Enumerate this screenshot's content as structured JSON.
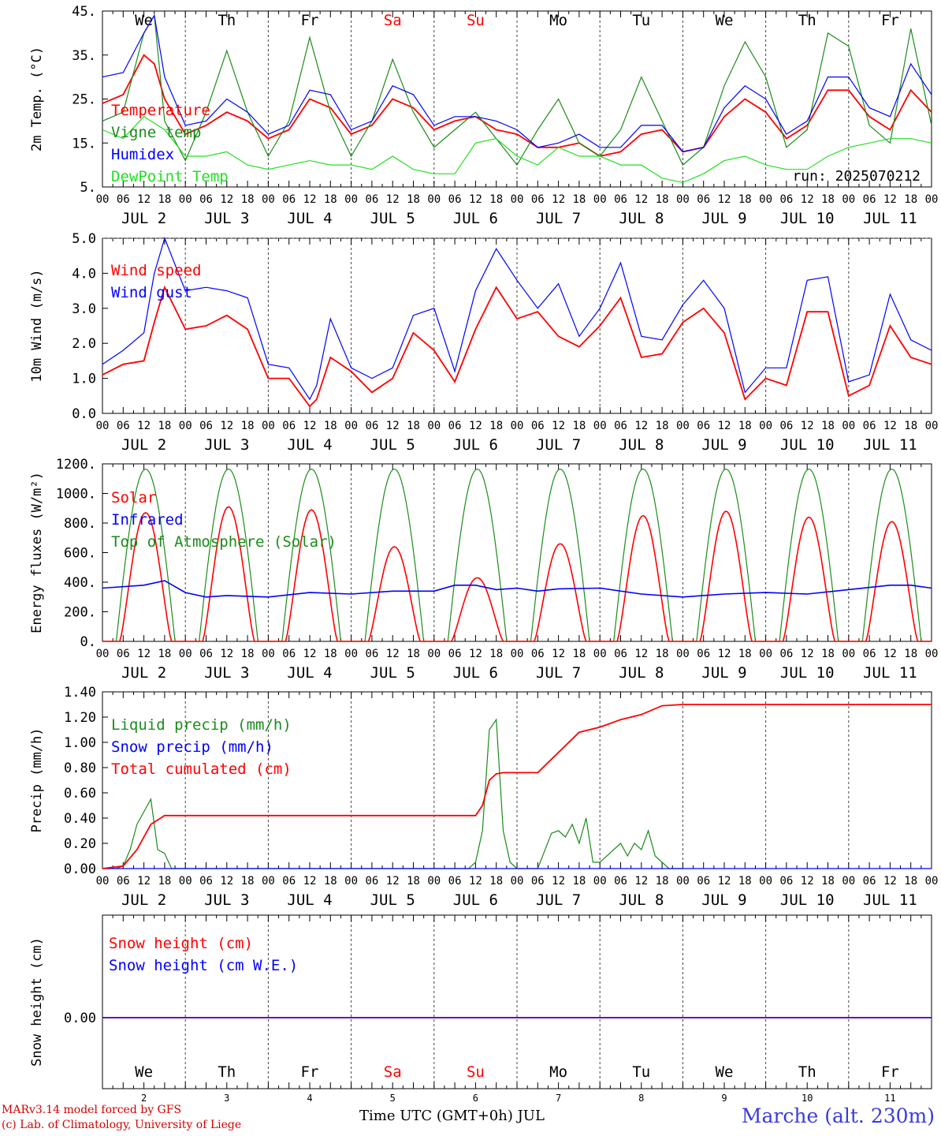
{
  "colors": {
    "temperature": "#ff0000",
    "vigne": "#1a8c1a",
    "humidex": "#0000ff",
    "dewpoint": "#22e022",
    "weekend_day": "#ff0000",
    "weekday": "#000000"
  },
  "days": [
    "We",
    "Th",
    "Fr",
    "Sa",
    "Su",
    "Mo",
    "Tu",
    "We",
    "Th",
    "Fr"
  ],
  "weekend_days": [
    3,
    4
  ],
  "date_labels": [
    "JUL  2",
    "JUL  3",
    "JUL  4",
    "JUL  5",
    "JUL  6",
    "JUL  7",
    "JUL  8",
    "JUL  9",
    "JUL 10",
    "JUL 11"
  ],
  "hour_ticks": [
    "00",
    "06",
    "12",
    "18"
  ],
  "bottom_day_numbers": [
    "2",
    "3",
    "4",
    "5",
    "6",
    "7",
    "8",
    "9",
    "10",
    "11"
  ],
  "run_label": "run: 2025070212",
  "footer": {
    "model_line": "MARv3.14 model forced by GFS",
    "copyright_line": "(c) Lab. of Climatology, University of Liege",
    "xlabel": "Time UTC (GMT+0h) JUL",
    "location": "Marche (alt. 230m)"
  },
  "chart_data": [
    {
      "type": "line",
      "ylabel": "2m Temp. (°C)",
      "ylim": [
        5,
        45
      ],
      "yticks": [
        "45.",
        "35.",
        "25.",
        "15.",
        "5."
      ],
      "ytick_values": [
        45,
        35,
        25,
        15,
        5
      ],
      "x_unit": "hours since JUL 2 00 UTC",
      "legend": [
        "Temperature",
        "Vigne temp",
        "Humidex",
        "DewPoint Temp"
      ],
      "series": [
        {
          "name": "Temperature",
          "color": "temperature",
          "x": [
            0,
            6,
            12,
            15,
            18,
            24,
            30,
            36,
            42,
            48,
            54,
            60,
            66,
            72,
            78,
            84,
            90,
            96,
            102,
            108,
            114,
            120,
            126,
            132,
            138,
            144,
            150,
            156,
            162,
            168,
            174,
            180,
            186,
            192,
            198,
            204,
            210,
            216,
            222,
            228,
            234,
            240
          ],
          "y": [
            24,
            26,
            35,
            33,
            25,
            17,
            19,
            22,
            20,
            16,
            18,
            25,
            23,
            17,
            19,
            25,
            23,
            18,
            20,
            21,
            18,
            17,
            14,
            14,
            15,
            12,
            13,
            17,
            18,
            13,
            14,
            21,
            25,
            22,
            16,
            19,
            27,
            27,
            21,
            18,
            27,
            22
          ]
        },
        {
          "name": "Vigne temp",
          "color": "vigne",
          "x": [
            0,
            6,
            12,
            15,
            18,
            24,
            30,
            36,
            42,
            48,
            54,
            60,
            66,
            72,
            78,
            84,
            90,
            96,
            102,
            108,
            114,
            120,
            126,
            132,
            138,
            144,
            150,
            156,
            162,
            168,
            174,
            180,
            186,
            192,
            198,
            204,
            210,
            216,
            222,
            228,
            234,
            240
          ],
          "y": [
            20,
            22,
            40,
            44,
            20,
            11,
            22,
            36,
            22,
            12,
            20,
            39,
            22,
            12,
            20,
            34,
            22,
            14,
            18,
            22,
            16,
            10,
            18,
            25,
            15,
            12,
            18,
            30,
            20,
            10,
            14,
            28,
            38,
            30,
            14,
            18,
            40,
            37,
            19,
            15,
            41,
            19
          ]
        },
        {
          "name": "Humidex",
          "color": "humidex",
          "x": [
            0,
            6,
            12,
            15,
            18,
            24,
            30,
            36,
            42,
            48,
            54,
            60,
            66,
            72,
            78,
            84,
            90,
            96,
            102,
            108,
            114,
            120,
            126,
            132,
            138,
            144,
            150,
            156,
            162,
            168,
            174,
            180,
            186,
            192,
            198,
            204,
            210,
            216,
            222,
            228,
            234,
            240
          ],
          "y": [
            30,
            31,
            40,
            44,
            30,
            19,
            20,
            25,
            22,
            17,
            19,
            27,
            26,
            18,
            20,
            28,
            26,
            19,
            21,
            21,
            20,
            18,
            14,
            15,
            17,
            14,
            14,
            19,
            19,
            13,
            14,
            23,
            28,
            25,
            17,
            20,
            30,
            30,
            23,
            21,
            33,
            26
          ]
        },
        {
          "name": "DewPoint Temp",
          "color": "dewpoint",
          "x": [
            0,
            6,
            12,
            18,
            24,
            30,
            36,
            42,
            48,
            54,
            60,
            66,
            72,
            78,
            84,
            90,
            96,
            102,
            108,
            114,
            120,
            126,
            132,
            138,
            144,
            150,
            156,
            162,
            168,
            174,
            180,
            186,
            192,
            198,
            204,
            210,
            216,
            222,
            228,
            234,
            240
          ],
          "y": [
            18,
            16,
            21,
            18,
            12,
            12,
            13,
            10,
            9,
            10,
            11,
            10,
            10,
            9,
            12,
            9,
            8,
            8,
            15,
            16,
            12,
            10,
            14,
            12,
            12,
            10,
            10,
            7,
            6,
            8,
            11,
            12,
            10,
            9,
            9,
            12,
            14,
            15,
            16,
            16,
            15
          ]
        }
      ]
    },
    {
      "type": "line",
      "ylabel": "10m Wind (m/s)",
      "ylim": [
        0,
        5
      ],
      "yticks": [
        "5.0",
        "4.0",
        "3.0",
        "2.0",
        "1.0",
        "0.0"
      ],
      "ytick_values": [
        5,
        4,
        3,
        2,
        1,
        0
      ],
      "legend": [
        "Wind speed",
        "Wind gust"
      ],
      "series": [
        {
          "name": "Wind speed",
          "color": "temperature",
          "x": [
            0,
            6,
            12,
            15,
            18,
            24,
            30,
            36,
            42,
            48,
            54,
            60,
            62,
            66,
            72,
            78,
            84,
            90,
            96,
            102,
            108,
            114,
            120,
            126,
            132,
            138,
            144,
            150,
            156,
            162,
            168,
            174,
            180,
            186,
            192,
            198,
            204,
            210,
            216,
            222,
            228,
            234,
            240
          ],
          "y": [
            1.1,
            1.4,
            1.5,
            2.6,
            3.6,
            2.4,
            2.5,
            2.8,
            2.4,
            1.0,
            1.0,
            0.2,
            0.4,
            1.6,
            1.2,
            0.6,
            1.0,
            2.3,
            1.8,
            0.9,
            2.4,
            3.6,
            2.7,
            2.9,
            2.2,
            1.9,
            2.5,
            3.3,
            1.6,
            1.7,
            2.6,
            3.0,
            2.3,
            0.4,
            1.0,
            0.8,
            2.9,
            2.9,
            0.5,
            0.8,
            2.5,
            1.6,
            1.4
          ]
        },
        {
          "name": "Wind gust",
          "color": "humidex",
          "x": [
            0,
            6,
            12,
            15,
            18,
            24,
            30,
            36,
            42,
            48,
            54,
            60,
            62,
            66,
            72,
            78,
            84,
            90,
            96,
            102,
            108,
            114,
            120,
            126,
            132,
            138,
            144,
            150,
            156,
            162,
            168,
            174,
            180,
            186,
            192,
            198,
            204,
            210,
            216,
            222,
            228,
            234,
            240
          ],
          "y": [
            1.4,
            1.8,
            2.3,
            4.0,
            5.0,
            3.5,
            3.6,
            3.5,
            3.3,
            1.4,
            1.3,
            0.4,
            0.8,
            2.7,
            1.3,
            1.0,
            1.3,
            2.8,
            3.0,
            1.2,
            3.5,
            4.7,
            3.8,
            3.0,
            3.7,
            2.2,
            3.0,
            4.3,
            2.2,
            2.1,
            3.1,
            3.8,
            3.0,
            0.6,
            1.3,
            1.3,
            3.8,
            3.9,
            0.9,
            1.1,
            3.4,
            2.1,
            1.8
          ]
        }
      ]
    },
    {
      "type": "line",
      "ylabel": "Energy fluxes (W/m²)",
      "ylim": [
        0,
        1200
      ],
      "yticks": [
        "1200.",
        "1000.",
        "800.",
        "600.",
        "400.",
        "200.",
        "0."
      ],
      "ytick_values": [
        1200,
        1000,
        800,
        600,
        400,
        200,
        0
      ],
      "legend": [
        "Solar",
        "Infrared",
        "Top of Atmosphere (Solar)"
      ],
      "series": [
        {
          "name": "Solar",
          "color": "temperature",
          "toa_peak": 1165,
          "daily_peak": [
            870,
            910,
            890,
            640,
            430,
            660,
            850,
            880,
            840,
            810
          ]
        },
        {
          "name": "Infrared",
          "color": "humidex",
          "x": [
            0,
            12,
            18,
            24,
            30,
            36,
            48,
            60,
            72,
            84,
            96,
            102,
            108,
            114,
            120,
            126,
            132,
            144,
            156,
            168,
            180,
            192,
            204,
            216,
            228,
            234,
            240
          ],
          "y": [
            360,
            380,
            410,
            330,
            300,
            310,
            300,
            330,
            320,
            340,
            340,
            380,
            380,
            350,
            360,
            340,
            355,
            360,
            320,
            300,
            320,
            330,
            320,
            350,
            380,
            380,
            360
          ]
        },
        {
          "name": "Top of Atmosphere (Solar)",
          "color": "vigne"
        }
      ]
    },
    {
      "type": "line",
      "ylabel": "Precip (mm/h)",
      "ylim": [
        0,
        1.4
      ],
      "yticks": [
        "1.40",
        "1.20",
        "1.00",
        "0.80",
        "0.60",
        "0.40",
        "0.20",
        "0.00"
      ],
      "ytick_values": [
        1.4,
        1.2,
        1.0,
        0.8,
        0.6,
        0.4,
        0.2,
        0.0
      ],
      "legend": [
        "Liquid precip (mm/h)",
        "Snow precip (mm/h)",
        "Total cumulated (cm)"
      ],
      "series": [
        {
          "name": "Liquid precip (mm/h)",
          "color": "vigne",
          "x": [
            0,
            4,
            6,
            8,
            10,
            12,
            14,
            16,
            18,
            20,
            22,
            24,
            106,
            108,
            110,
            112,
            114,
            116,
            118,
            120,
            126,
            130,
            132,
            134,
            136,
            138,
            140,
            142,
            144,
            150,
            152,
            154,
            156,
            158,
            160,
            162,
            164,
            168
          ],
          "y": [
            0,
            0,
            0.02,
            0.15,
            0.35,
            0.45,
            0.55,
            0.15,
            0.12,
            0,
            0,
            0,
            0,
            0.05,
            0.3,
            1.1,
            1.18,
            0.3,
            0.05,
            0,
            0,
            0.28,
            0.3,
            0.25,
            0.35,
            0.2,
            0.4,
            0.05,
            0.05,
            0.2,
            0.1,
            0.2,
            0.15,
            0.3,
            0.1,
            0.05,
            0,
            0
          ]
        },
        {
          "name": "Snow precip (mm/h)",
          "color": "humidex",
          "x": [
            0,
            240
          ],
          "y": [
            0,
            0
          ]
        },
        {
          "name": "Total cumulated (cm)",
          "color": "temperature",
          "x": [
            0,
            6,
            10,
            14,
            18,
            108,
            110,
            112,
            114,
            116,
            120,
            126,
            132,
            138,
            144,
            150,
            156,
            162,
            168,
            240
          ],
          "y": [
            0,
            0.02,
            0.15,
            0.35,
            0.42,
            0.42,
            0.5,
            0.7,
            0.75,
            0.76,
            0.76,
            0.76,
            0.92,
            1.08,
            1.12,
            1.18,
            1.22,
            1.29,
            1.3,
            1.3
          ]
        }
      ]
    },
    {
      "type": "line",
      "ylabel": "Snow height (cm)",
      "yticks": [
        "0.00"
      ],
      "legend": [
        "Snow height (cm)",
        "Snow height (cm W.E.)"
      ],
      "series": [
        {
          "name": "Snow height (cm)",
          "color": "temperature",
          "x": [
            0,
            240
          ],
          "y": [
            0,
            0
          ]
        },
        {
          "name": "Snow height (cm W.E.)",
          "color": "humidex",
          "x": [
            0,
            240
          ],
          "y": [
            0,
            0
          ]
        }
      ]
    }
  ]
}
